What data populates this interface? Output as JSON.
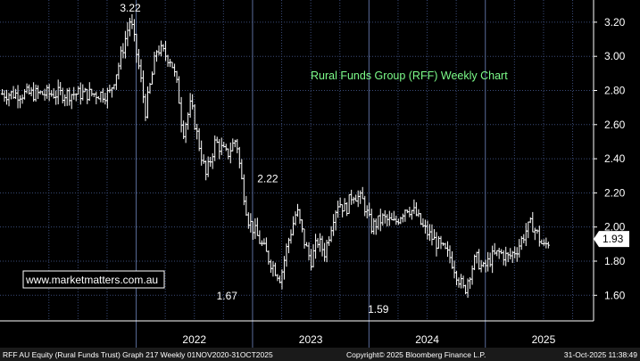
{
  "chart_data": {
    "type": "ohlc",
    "title": "Rural Funds Group (RFF) Weekly Chart",
    "y_ticks": [
      "1.60",
      "1.80",
      "2.00",
      "2.20",
      "2.40",
      "2.60",
      "2.80",
      "3.00",
      "3.20"
    ],
    "y_tick_values": [
      1.6,
      1.8,
      2.0,
      2.2,
      2.4,
      2.6,
      2.8,
      3.0,
      3.2
    ],
    "ylim": [
      1.45,
      3.33
    ],
    "x_labels": [
      {
        "label": "2022",
        "center": 2022.5
      },
      {
        "label": "2023",
        "center": 2023.5
      },
      {
        "label": "2024",
        "center": 2024.5
      },
      {
        "label": "2025",
        "center": 2025.5
      }
    ],
    "x_separators": [
      2022.0,
      2023.0,
      2024.0,
      2025.0
    ],
    "xlim": [
      2020.83,
      2025.93
    ],
    "grid": true,
    "annotations": [
      {
        "text": "3.22",
        "x": 2021.95,
        "y": 3.22
      },
      {
        "text": "1.67",
        "x": 2022.78,
        "y": 1.67
      },
      {
        "text": "2.22",
        "x": 2023.13,
        "y": 2.22
      },
      {
        "text": "1.59",
        "x": 2024.08,
        "y": 1.59
      }
    ],
    "last_value_label": "1.93",
    "last_value": 1.93,
    "watermark": "www.marketmatters.com.au",
    "footer_left": "RFF AU Equity (Rural Funds Trust) Graph 217 Weekly 01NOV2020-31OCT2025",
    "footer_center": "Copyright© 2025 Bloomberg Finance L.P.",
    "footer_right": "31-Oct-2025 11:38:49",
    "anchors": [
      [
        2021.77,
        2.78
      ],
      [
        2021.85,
        2.95
      ],
      [
        2021.95,
        3.22
      ],
      [
        2022.02,
        2.95
      ],
      [
        2022.08,
        2.68
      ],
      [
        2022.18,
        3.05
      ],
      [
        2022.3,
        2.98
      ],
      [
        2022.36,
        2.8
      ],
      [
        2022.4,
        2.55
      ],
      [
        2022.47,
        2.72
      ],
      [
        2022.55,
        2.45
      ],
      [
        2022.6,
        2.3
      ],
      [
        2022.68,
        2.5
      ],
      [
        2022.78,
        2.42
      ],
      [
        2022.86,
        2.52
      ],
      [
        2022.9,
        2.3
      ],
      [
        2022.96,
        2.05
      ],
      [
        2023.06,
        1.92
      ],
      [
        2023.15,
        1.8
      ],
      [
        2023.24,
        1.7
      ],
      [
        2023.3,
        1.9
      ],
      [
        2023.38,
        2.1
      ],
      [
        2023.45,
        1.9
      ],
      [
        2023.5,
        1.8
      ],
      [
        2023.56,
        1.92
      ],
      [
        2023.62,
        1.85
      ],
      [
        2023.7,
        2.08
      ],
      [
        2023.74,
        2.15
      ],
      [
        2023.8,
        2.1
      ],
      [
        2023.86,
        2.2
      ],
      [
        2023.95,
        2.15
      ],
      [
        2024.02,
        2.0
      ],
      [
        2024.12,
        2.05
      ],
      [
        2024.22,
        2.02
      ],
      [
        2024.32,
        2.12
      ],
      [
        2024.4,
        2.08
      ],
      [
        2024.46,
        2.0
      ],
      [
        2024.55,
        1.93
      ],
      [
        2024.62,
        1.88
      ],
      [
        2024.7,
        1.82
      ],
      [
        2024.77,
        1.7
      ],
      [
        2024.82,
        1.62
      ],
      [
        2024.86,
        1.72
      ],
      [
        2024.92,
        1.82
      ],
      [
        2024.98,
        1.75
      ],
      [
        2025.05,
        1.82
      ],
      [
        2025.12,
        1.85
      ],
      [
        2025.2,
        1.82
      ],
      [
        2025.28,
        1.88
      ],
      [
        2025.35,
        1.98
      ],
      [
        2025.4,
        2.02
      ],
      [
        2025.45,
        1.95
      ],
      [
        2025.5,
        1.88
      ],
      [
        2025.56,
        1.93
      ]
    ]
  }
}
